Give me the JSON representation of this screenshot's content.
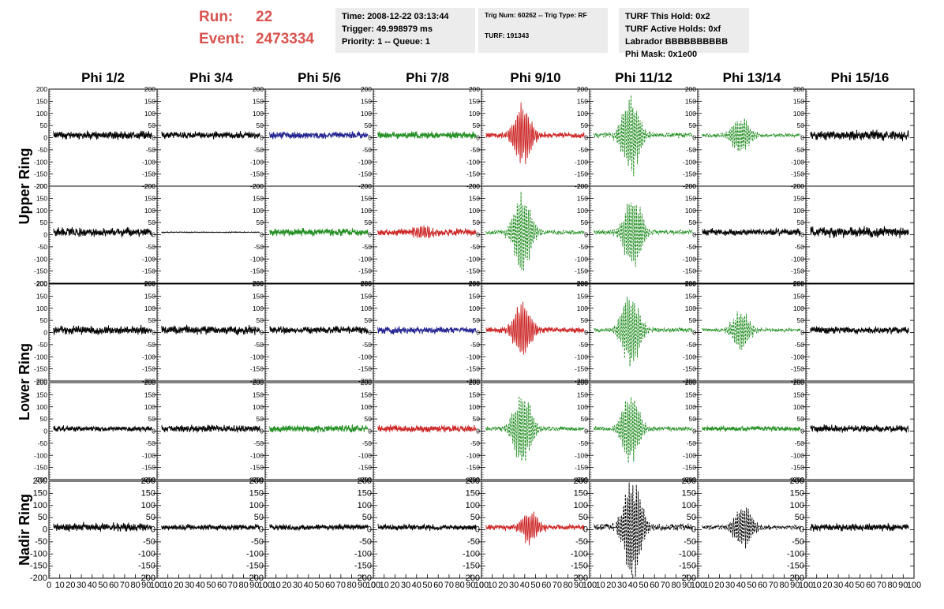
{
  "header": {
    "run_label": "Run:",
    "run_value": "22",
    "event_label": "Event:",
    "event_value": "2473334",
    "header_color": "#d9534f"
  },
  "info": {
    "time": "Time: 2008-12-22 03:13:44",
    "trigger": "Trigger: 49.998979 ms",
    "priority": "Priority: 1 -- Queue: 1",
    "trig_num": "Trig Num: 60262 -- Trig Type: RF",
    "turf": "TURF: 191343",
    "turf_hold": "TURF This Hold: 0x2",
    "turf_active": "TURF Active Holds: 0xf",
    "labrador": "Labrador BBBBBBBBBB",
    "phi_mask": "Phi Mask: 0x1e00"
  },
  "chart_data": {
    "type": "line",
    "title": "",
    "columns": [
      "Phi 1/2",
      "Phi 3/4",
      "Phi 5/6",
      "Phi 7/8",
      "Phi 9/10",
      "Phi 11/12",
      "Phi 13/14",
      "Phi 15/16"
    ],
    "row_groups": [
      {
        "label": "Upper Ring",
        "rows": [
          0,
          1
        ]
      },
      {
        "label": "Lower Ring",
        "rows": [
          2,
          3
        ]
      },
      {
        "label": "Nadir Ring",
        "rows": [
          4
        ]
      }
    ],
    "xlim": [
      0,
      100
    ],
    "ylim": [
      -200,
      200
    ],
    "x_ticks": [
      "0",
      "10",
      "20",
      "30",
      "40",
      "50",
      "60",
      "70",
      "80",
      "90",
      "100"
    ],
    "y_ticks": [
      "200",
      "150",
      "100",
      "50",
      "0",
      "-50",
      "-100",
      "-150",
      "-200"
    ],
    "colors": {
      "black": "#000000",
      "blue": "#1f1f8f",
      "green": "#1e8c1e",
      "red": "#cc2222"
    },
    "panels": [
      [
        {
          "color": "black",
          "dashed": false,
          "noise": 18,
          "pulse_amp": 0,
          "pulse_center": 40
        },
        {
          "color": "black",
          "dashed": false,
          "noise": 15,
          "pulse_amp": 0,
          "pulse_center": 40
        },
        {
          "color": "blue",
          "dashed": false,
          "noise": 15,
          "pulse_amp": 0,
          "pulse_center": 40
        },
        {
          "color": "green",
          "dashed": false,
          "noise": 15,
          "pulse_amp": 0,
          "pulse_center": 40
        },
        {
          "color": "red",
          "dashed": false,
          "noise": 12,
          "pulse_amp": 110,
          "pulse_center": 38
        },
        {
          "color": "green",
          "dashed": true,
          "noise": 10,
          "pulse_amp": 150,
          "pulse_center": 38
        },
        {
          "color": "green",
          "dashed": true,
          "noise": 8,
          "pulse_amp": 75,
          "pulse_center": 40
        },
        {
          "color": "black",
          "dashed": false,
          "noise": 20,
          "pulse_amp": 0,
          "pulse_center": 40
        }
      ],
      [
        {
          "color": "black",
          "dashed": false,
          "noise": 18,
          "pulse_amp": 0,
          "pulse_center": 40
        },
        {
          "color": "black",
          "dashed": false,
          "noise": 2,
          "pulse_amp": 0,
          "pulse_center": 40
        },
        {
          "color": "green",
          "dashed": false,
          "noise": 15,
          "pulse_amp": 0,
          "pulse_center": 40
        },
        {
          "color": "red",
          "dashed": false,
          "noise": 15,
          "pulse_amp": 25,
          "pulse_center": 45
        },
        {
          "color": "green",
          "dashed": true,
          "noise": 10,
          "pulse_amp": 150,
          "pulse_center": 38
        },
        {
          "color": "green",
          "dashed": true,
          "noise": 10,
          "pulse_amp": 140,
          "pulse_center": 40
        },
        {
          "color": "black",
          "dashed": false,
          "noise": 15,
          "pulse_amp": 0,
          "pulse_center": 40
        },
        {
          "color": "black",
          "dashed": false,
          "noise": 22,
          "pulse_amp": 0,
          "pulse_center": 40
        }
      ],
      [
        {
          "color": "black",
          "dashed": false,
          "noise": 18,
          "pulse_amp": 0,
          "pulse_center": 40
        },
        {
          "color": "black",
          "dashed": false,
          "noise": 18,
          "pulse_amp": 0,
          "pulse_center": 40
        },
        {
          "color": "black",
          "dashed": false,
          "noise": 15,
          "pulse_amp": 0,
          "pulse_center": 40
        },
        {
          "color": "blue",
          "dashed": false,
          "noise": 15,
          "pulse_amp": 0,
          "pulse_center": 40
        },
        {
          "color": "red",
          "dashed": false,
          "noise": 12,
          "pulse_amp": 110,
          "pulse_center": 38
        },
        {
          "color": "green",
          "dashed": true,
          "noise": 10,
          "pulse_amp": 150,
          "pulse_center": 38
        },
        {
          "color": "green",
          "dashed": true,
          "noise": 8,
          "pulse_amp": 75,
          "pulse_center": 40
        },
        {
          "color": "black",
          "dashed": false,
          "noise": 15,
          "pulse_amp": 0,
          "pulse_center": 40
        }
      ],
      [
        {
          "color": "black",
          "dashed": false,
          "noise": 12,
          "pulse_amp": 0,
          "pulse_center": 40
        },
        {
          "color": "black",
          "dashed": false,
          "noise": 15,
          "pulse_amp": 0,
          "pulse_center": 40
        },
        {
          "color": "green",
          "dashed": false,
          "noise": 15,
          "pulse_amp": 0,
          "pulse_center": 40
        },
        {
          "color": "red",
          "dashed": false,
          "noise": 15,
          "pulse_amp": 0,
          "pulse_center": 40
        },
        {
          "color": "green",
          "dashed": true,
          "noise": 10,
          "pulse_amp": 140,
          "pulse_center": 38
        },
        {
          "color": "green",
          "dashed": true,
          "noise": 10,
          "pulse_amp": 140,
          "pulse_center": 38
        },
        {
          "color": "green",
          "dashed": false,
          "noise": 10,
          "pulse_amp": 0,
          "pulse_center": 40
        },
        {
          "color": "black",
          "dashed": false,
          "noise": 15,
          "pulse_amp": 0,
          "pulse_center": 40
        }
      ],
      [
        {
          "color": "black",
          "dashed": false,
          "noise": 18,
          "pulse_amp": 0,
          "pulse_center": 40
        },
        {
          "color": "black",
          "dashed": false,
          "noise": 12,
          "pulse_amp": 0,
          "pulse_center": 40
        },
        {
          "color": "black",
          "dashed": false,
          "noise": 12,
          "pulse_amp": 0,
          "pulse_center": 40
        },
        {
          "color": "black",
          "dashed": false,
          "noise": 12,
          "pulse_amp": 0,
          "pulse_center": 40
        },
        {
          "color": "red",
          "dashed": false,
          "noise": 12,
          "pulse_amp": 60,
          "pulse_center": 45
        },
        {
          "color": "black",
          "dashed": true,
          "noise": 15,
          "pulse_amp": 200,
          "pulse_center": 40
        },
        {
          "color": "black",
          "dashed": true,
          "noise": 10,
          "pulse_amp": 80,
          "pulse_center": 42
        },
        {
          "color": "black",
          "dashed": false,
          "noise": 15,
          "pulse_amp": 0,
          "pulse_center": 40
        }
      ]
    ]
  }
}
